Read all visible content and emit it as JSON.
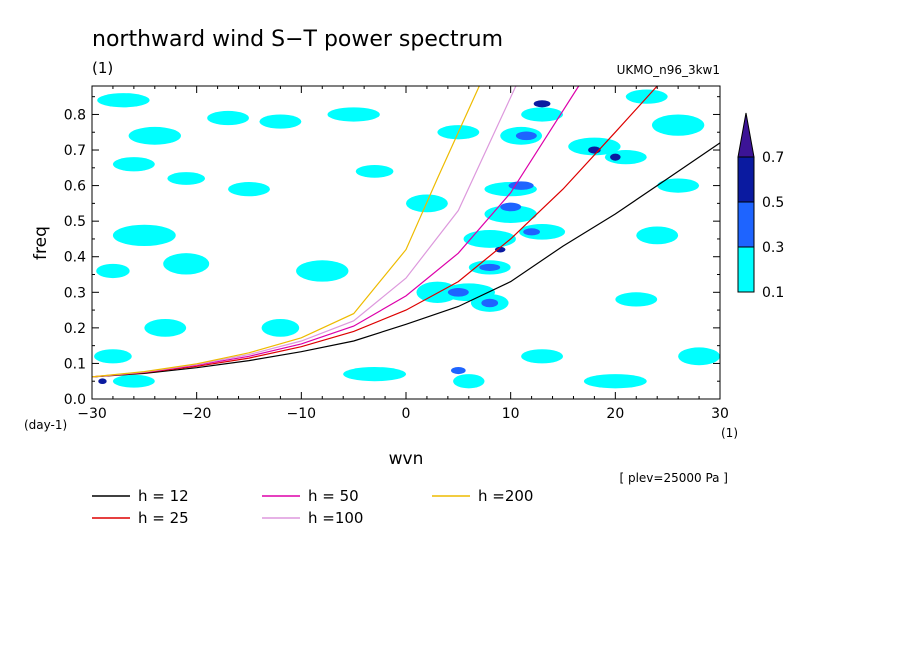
{
  "chart_data": {
    "type": "heatmap",
    "title": "northward wind S−T power spectrum",
    "subtitle_left": "(1)",
    "subtitle_right": "UKMO_n96_3kw1",
    "xlabel": "wvn",
    "ylabel": "freq",
    "x_unit_label": "(1)",
    "y_unit_label": "(day-1)",
    "annotation": "[ plev=25000 Pa ]",
    "xlim": [
      -30,
      30
    ],
    "ylim": [
      0,
      0.88
    ],
    "x_ticks": [
      -30,
      -20,
      -10,
      0,
      10,
      20,
      30
    ],
    "x_tick_labels": [
      "−30",
      "−20",
      "−10",
      "0",
      "10",
      "20",
      "30"
    ],
    "y_ticks": [
      0,
      0.1,
      0.2,
      0.3,
      0.4,
      0.5,
      0.6,
      0.7,
      0.8
    ],
    "y_tick_labels": [
      "0.0",
      "0.1",
      "0.2",
      "0.3",
      "0.4",
      "0.5",
      "0.6",
      "0.7",
      "0.8"
    ],
    "grid": false,
    "colorbar": {
      "placement": "right",
      "levels": [
        "0.1",
        "0.3",
        "0.5",
        "0.7"
      ],
      "colors": [
        "#00ffff",
        "#1e64ff",
        "#0a1aa0",
        "#3c1496"
      ]
    },
    "series": [
      {
        "name": "h = 12",
        "color": "#000000",
        "x": [
          -30,
          -25,
          -20,
          -15,
          -10,
          -5,
          0,
          5,
          10,
          15,
          20,
          25,
          30
        ],
        "y": [
          0.062,
          0.072,
          0.088,
          0.108,
          0.133,
          0.163,
          0.21,
          0.26,
          0.33,
          0.43,
          0.52,
          0.62,
          0.72
        ]
      },
      {
        "name": "h = 25",
        "color": "#dd0000",
        "x": [
          -30,
          -25,
          -20,
          -15,
          -10,
          -5,
          0,
          5,
          10,
          15,
          20,
          24
        ],
        "y": [
          0.062,
          0.074,
          0.092,
          0.115,
          0.147,
          0.19,
          0.25,
          0.33,
          0.45,
          0.59,
          0.75,
          0.88
        ]
      },
      {
        "name": "h = 50",
        "color": "#dd00aa",
        "x": [
          -30,
          -25,
          -20,
          -15,
          -10,
          -5,
          0,
          5,
          10,
          16.5
        ],
        "y": [
          0.062,
          0.075,
          0.095,
          0.12,
          0.155,
          0.205,
          0.29,
          0.41,
          0.58,
          0.88
        ]
      },
      {
        "name": "h =100",
        "color": "#dd99dd",
        "x": [
          -30,
          -25,
          -20,
          -15,
          -10,
          -5,
          0,
          5,
          10.5
        ],
        "y": [
          0.062,
          0.076,
          0.097,
          0.125,
          0.163,
          0.22,
          0.34,
          0.53,
          0.88
        ]
      },
      {
        "name": "h =200",
        "color": "#eebb00",
        "x": [
          -30,
          -25,
          -20,
          -15,
          -10,
          -5,
          0,
          3,
          7
        ],
        "y": [
          0.062,
          0.077,
          0.099,
          0.13,
          0.172,
          0.24,
          0.42,
          0.62,
          0.88
        ]
      }
    ],
    "contour_blobs": [
      {
        "x": -27,
        "y": 0.84,
        "rx": 2.5,
        "ry": 0.02,
        "level": 0
      },
      {
        "x": -24,
        "y": 0.74,
        "rx": 2.5,
        "ry": 0.025,
        "level": 0
      },
      {
        "x": -26,
        "y": 0.66,
        "rx": 2.0,
        "ry": 0.02,
        "level": 0
      },
      {
        "x": -21,
        "y": 0.62,
        "rx": 1.8,
        "ry": 0.018,
        "level": 0
      },
      {
        "x": -25,
        "y": 0.46,
        "rx": 3.0,
        "ry": 0.03,
        "level": 0
      },
      {
        "x": -28,
        "y": 0.36,
        "rx": 1.6,
        "ry": 0.02,
        "level": 0
      },
      {
        "x": -21,
        "y": 0.38,
        "rx": 2.2,
        "ry": 0.03,
        "level": 0
      },
      {
        "x": -23,
        "y": 0.2,
        "rx": 2.0,
        "ry": 0.025,
        "level": 0
      },
      {
        "x": -28,
        "y": 0.12,
        "rx": 1.8,
        "ry": 0.02,
        "level": 0
      },
      {
        "x": -26,
        "y": 0.05,
        "rx": 2.0,
        "ry": 0.018,
        "level": 0
      },
      {
        "x": -17,
        "y": 0.79,
        "rx": 2.0,
        "ry": 0.02,
        "level": 0
      },
      {
        "x": -15,
        "y": 0.59,
        "rx": 2.0,
        "ry": 0.02,
        "level": 0
      },
      {
        "x": -12,
        "y": 0.78,
        "rx": 2.0,
        "ry": 0.02,
        "level": 0
      },
      {
        "x": -8,
        "y": 0.36,
        "rx": 2.5,
        "ry": 0.03,
        "level": 0
      },
      {
        "x": -12,
        "y": 0.2,
        "rx": 1.8,
        "ry": 0.025,
        "level": 0
      },
      {
        "x": -5,
        "y": 0.8,
        "rx": 2.5,
        "ry": 0.02,
        "level": 0
      },
      {
        "x": -3,
        "y": 0.64,
        "rx": 1.8,
        "ry": 0.018,
        "level": 0
      },
      {
        "x": 2,
        "y": 0.55,
        "rx": 2.0,
        "ry": 0.025,
        "level": 0
      },
      {
        "x": 3,
        "y": 0.3,
        "rx": 2.0,
        "ry": 0.03,
        "level": 0
      },
      {
        "x": -3,
        "y": 0.07,
        "rx": 3.0,
        "ry": 0.02,
        "level": 0
      },
      {
        "x": 5,
        "y": 0.75,
        "rx": 2.0,
        "ry": 0.02,
        "level": 0
      },
      {
        "x": 11,
        "y": 0.74,
        "rx": 2.0,
        "ry": 0.025,
        "level": 0
      },
      {
        "x": 10,
        "y": 0.59,
        "rx": 2.5,
        "ry": 0.02,
        "level": 0
      },
      {
        "x": 10,
        "y": 0.52,
        "rx": 2.5,
        "ry": 0.025,
        "level": 0
      },
      {
        "x": 8,
        "y": 0.45,
        "rx": 2.5,
        "ry": 0.025,
        "level": 0
      },
      {
        "x": 8,
        "y": 0.37,
        "rx": 2.0,
        "ry": 0.02,
        "level": 0
      },
      {
        "x": 6,
        "y": 0.3,
        "rx": 2.5,
        "ry": 0.025,
        "level": 0
      },
      {
        "x": 8,
        "y": 0.27,
        "rx": 1.8,
        "ry": 0.025,
        "level": 0
      },
      {
        "x": 13,
        "y": 0.47,
        "rx": 2.2,
        "ry": 0.022,
        "level": 0
      },
      {
        "x": 13,
        "y": 0.8,
        "rx": 2.0,
        "ry": 0.02,
        "level": 0
      },
      {
        "x": 18,
        "y": 0.71,
        "rx": 2.5,
        "ry": 0.025,
        "level": 0
      },
      {
        "x": 21,
        "y": 0.68,
        "rx": 2.0,
        "ry": 0.02,
        "level": 0
      },
      {
        "x": 23,
        "y": 0.85,
        "rx": 2.0,
        "ry": 0.02,
        "level": 0
      },
      {
        "x": 26,
        "y": 0.77,
        "rx": 2.5,
        "ry": 0.03,
        "level": 0
      },
      {
        "x": 26,
        "y": 0.6,
        "rx": 2.0,
        "ry": 0.02,
        "level": 0
      },
      {
        "x": 24,
        "y": 0.46,
        "rx": 2.0,
        "ry": 0.025,
        "level": 0
      },
      {
        "x": 22,
        "y": 0.28,
        "rx": 2.0,
        "ry": 0.02,
        "level": 0
      },
      {
        "x": 28,
        "y": 0.12,
        "rx": 2.0,
        "ry": 0.025,
        "level": 0
      },
      {
        "x": 20,
        "y": 0.05,
        "rx": 3.0,
        "ry": 0.02,
        "level": 0
      },
      {
        "x": 13,
        "y": 0.12,
        "rx": 2.0,
        "ry": 0.02,
        "level": 0
      },
      {
        "x": 6,
        "y": 0.05,
        "rx": 1.5,
        "ry": 0.02,
        "level": 0
      },
      {
        "x": 11,
        "y": 0.6,
        "rx": 1.2,
        "ry": 0.012,
        "level": 1
      },
      {
        "x": 10,
        "y": 0.54,
        "rx": 1.0,
        "ry": 0.012,
        "level": 1
      },
      {
        "x": 8,
        "y": 0.37,
        "rx": 1.0,
        "ry": 0.01,
        "level": 1
      },
      {
        "x": 8,
        "y": 0.27,
        "rx": 0.8,
        "ry": 0.012,
        "level": 1
      },
      {
        "x": 5,
        "y": 0.3,
        "rx": 1.0,
        "ry": 0.012,
        "level": 1
      },
      {
        "x": 11.5,
        "y": 0.74,
        "rx": 1.0,
        "ry": 0.012,
        "level": 1
      },
      {
        "x": 12,
        "y": 0.47,
        "rx": 0.8,
        "ry": 0.01,
        "level": 1
      },
      {
        "x": 5,
        "y": 0.08,
        "rx": 0.7,
        "ry": 0.01,
        "level": 1
      },
      {
        "x": 13,
        "y": 0.83,
        "rx": 0.8,
        "ry": 0.01,
        "level": 2
      },
      {
        "x": 18,
        "y": 0.7,
        "rx": 0.6,
        "ry": 0.01,
        "level": 2
      },
      {
        "x": 20,
        "y": 0.68,
        "rx": 0.5,
        "ry": 0.01,
        "level": 2
      },
      {
        "x": 9,
        "y": 0.42,
        "rx": 0.5,
        "ry": 0.008,
        "level": 2
      },
      {
        "x": -29,
        "y": 0.05,
        "rx": 0.4,
        "ry": 0.008,
        "level": 2
      }
    ]
  }
}
